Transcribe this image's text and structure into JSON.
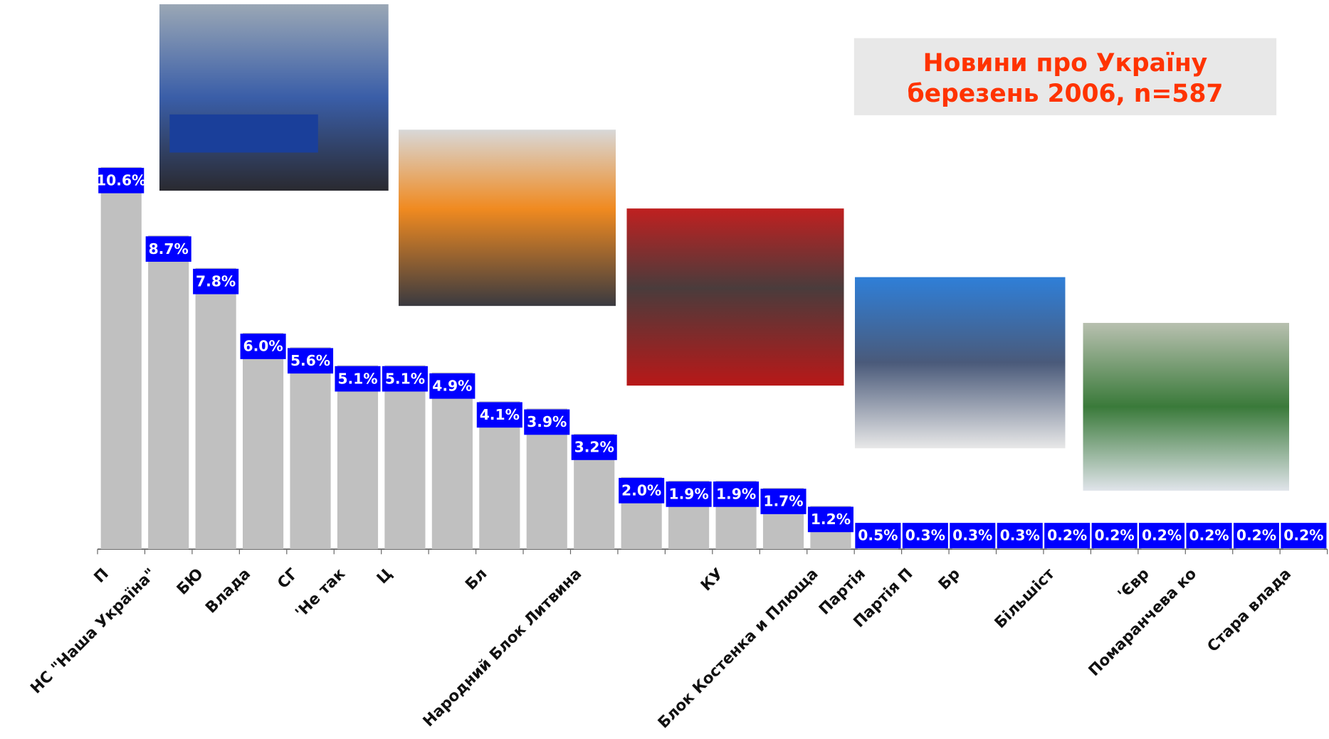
{
  "chart_data": {
    "type": "bar",
    "title": [
      "Новини про Україну",
      "березень 2006, n=587"
    ],
    "categories": [
      "П",
      "НС \"Наша Україна\"",
      "БЮ",
      "Влада",
      "СГ",
      "'Не так",
      "Ц",
      null,
      "Бл",
      null,
      "Народний Блок Литвина",
      null,
      null,
      "КУ",
      null,
      "Блок Костенка и Плюща",
      "Партія",
      "Партія П",
      "Бр",
      null,
      "Більшіст",
      null,
      "'Євр",
      "Помаранчева ко",
      null,
      "Стара влада"
    ],
    "values": [
      10.6,
      8.7,
      7.8,
      6.0,
      5.6,
      5.1,
      5.1,
      4.9,
      4.1,
      3.9,
      3.2,
      2.0,
      1.9,
      1.9,
      1.7,
      1.2,
      0.5,
      0.3,
      0.3,
      0.3,
      0.2,
      0.2,
      0.2,
      0.2,
      0.2,
      0.2
    ],
    "value_labels": [
      "10.6%",
      "8.7%",
      "7.8%",
      "6.0%",
      "5.6%",
      "5.1%",
      "5.1%",
      "4.9%",
      "4.1%",
      "3.9%",
      "3.2%",
      "2.0%",
      "1.9%",
      "1.9%",
      "1.7%",
      "1.2%",
      "0.5%",
      "0.3%",
      "0.3%",
      "0.3%",
      "0.2%",
      "0.2%",
      "0.2%",
      "0.2%",
      "0.2%",
      "0.2%"
    ],
    "color": "#c0c0c0",
    "label_color": "#0000ff",
    "ylim": [
      0,
      11
    ]
  }
}
